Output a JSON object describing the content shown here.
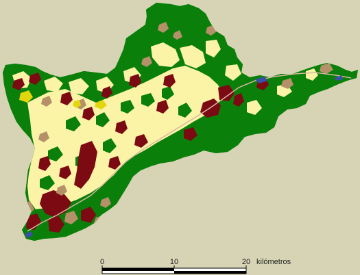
{
  "map": {
    "colors": {
      "background": "#d6d4b4",
      "forest": "#0a7f0a",
      "agriculture": "#fbf3a6",
      "urban": "#7c0a12",
      "shrubland": "#b5916a",
      "industrial": "#e3d60d",
      "water": "#3a4fa8",
      "river": "#d9b6a2"
    },
    "scale_bar": {
      "ticks": [
        "0",
        "10",
        "20"
      ],
      "unit": "kilómetros"
    }
  }
}
